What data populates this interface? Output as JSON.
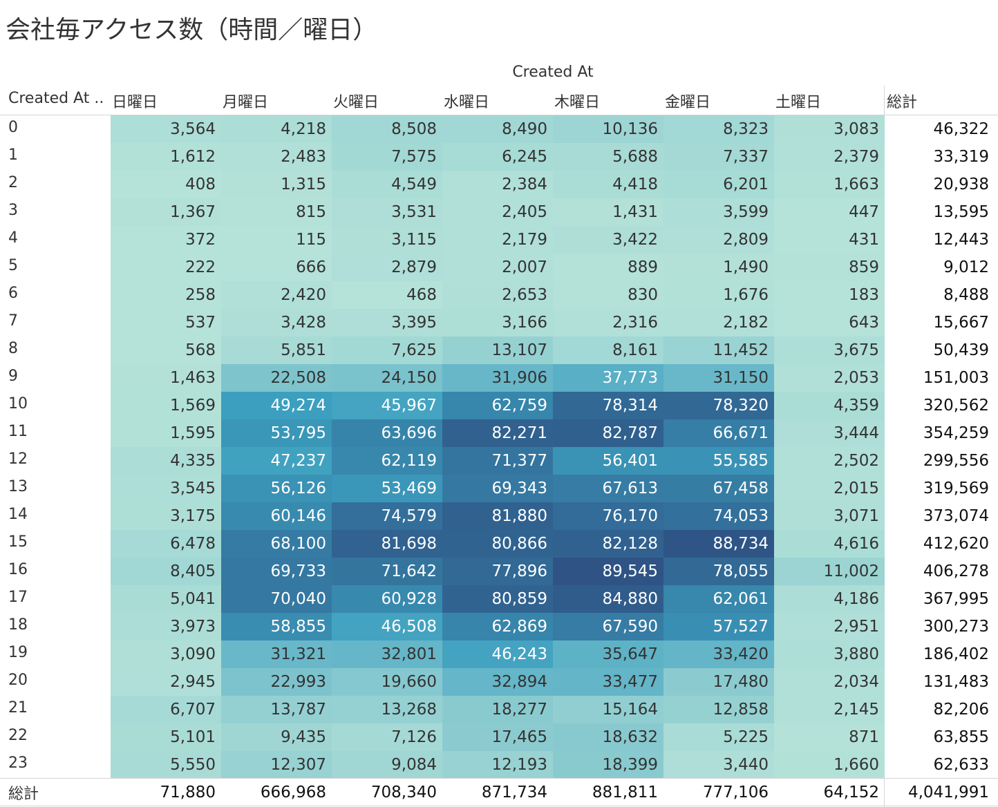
{
  "title": "会社毎アクセス数（時間／曜日）",
  "colors": {
    "low": "#b6e3d9",
    "mid": "#3c9fbf",
    "high": "#2e5384",
    "light_text": "#ffffff",
    "dark_text": "#333333"
  },
  "chart_data": {
    "type": "heatmap",
    "column_group_label": "Created At",
    "row_header": "Created At ..",
    "columns": [
      "日曜日",
      "月曜日",
      "火曜日",
      "水曜日",
      "木曜日",
      "金曜日",
      "土曜日"
    ],
    "rows": [
      "0",
      "1",
      "2",
      "3",
      "4",
      "5",
      "6",
      "7",
      "8",
      "9",
      "10",
      "11",
      "12",
      "13",
      "14",
      "15",
      "16",
      "17",
      "18",
      "19",
      "20",
      "21",
      "22",
      "23"
    ],
    "values": [
      [
        3564,
        4218,
        8508,
        8490,
        10136,
        8323,
        3083
      ],
      [
        1612,
        2483,
        7575,
        6245,
        5688,
        7337,
        2379
      ],
      [
        408,
        1315,
        4549,
        2384,
        4418,
        6201,
        1663
      ],
      [
        1367,
        815,
        3531,
        2405,
        1431,
        3599,
        447
      ],
      [
        372,
        115,
        3115,
        2179,
        3422,
        2809,
        431
      ],
      [
        222,
        666,
        2879,
        2007,
        889,
        1490,
        859
      ],
      [
        258,
        2420,
        468,
        2653,
        830,
        1676,
        183
      ],
      [
        537,
        3428,
        3395,
        3166,
        2316,
        2182,
        643
      ],
      [
        568,
        5851,
        7625,
        13107,
        8161,
        11452,
        3675
      ],
      [
        1463,
        22508,
        24150,
        31906,
        37773,
        31150,
        2053
      ],
      [
        1569,
        49274,
        45967,
        62759,
        78314,
        78320,
        4359
      ],
      [
        1595,
        53795,
        63696,
        82271,
        82787,
        66671,
        3444
      ],
      [
        4335,
        47237,
        62119,
        71377,
        56401,
        55585,
        2502
      ],
      [
        3545,
        56126,
        53469,
        69343,
        67613,
        67458,
        2015
      ],
      [
        3175,
        60146,
        74579,
        81880,
        76170,
        74053,
        3071
      ],
      [
        6478,
        68100,
        81698,
        80866,
        82128,
        88734,
        4616
      ],
      [
        8405,
        69733,
        71642,
        77896,
        89545,
        78055,
        11002
      ],
      [
        5041,
        70040,
        60928,
        80859,
        84880,
        62061,
        4186
      ],
      [
        3973,
        58855,
        46508,
        62869,
        67590,
        57527,
        2951
      ],
      [
        3090,
        31321,
        32801,
        46243,
        35647,
        33420,
        3880
      ],
      [
        2945,
        22993,
        19660,
        32894,
        33477,
        17480,
        2034
      ],
      [
        6707,
        13787,
        13268,
        18277,
        15164,
        12858,
        2145
      ],
      [
        5101,
        9435,
        7126,
        17465,
        18632,
        5225,
        871
      ],
      [
        5550,
        12307,
        9084,
        12193,
        18399,
        3440,
        1660
      ]
    ],
    "row_totals_label": "総計",
    "row_totals": [
      46322,
      33319,
      20938,
      13595,
      12443,
      9012,
      8488,
      15667,
      50439,
      151003,
      320562,
      354259,
      299556,
      319569,
      373074,
      412620,
      406278,
      367995,
      300273,
      186402,
      131483,
      82206,
      63855,
      62633
    ],
    "column_totals_label": "総計",
    "column_totals": [
      71880,
      666968,
      708340,
      871734,
      881811,
      777106,
      64152
    ],
    "grand_total": 4041991
  }
}
